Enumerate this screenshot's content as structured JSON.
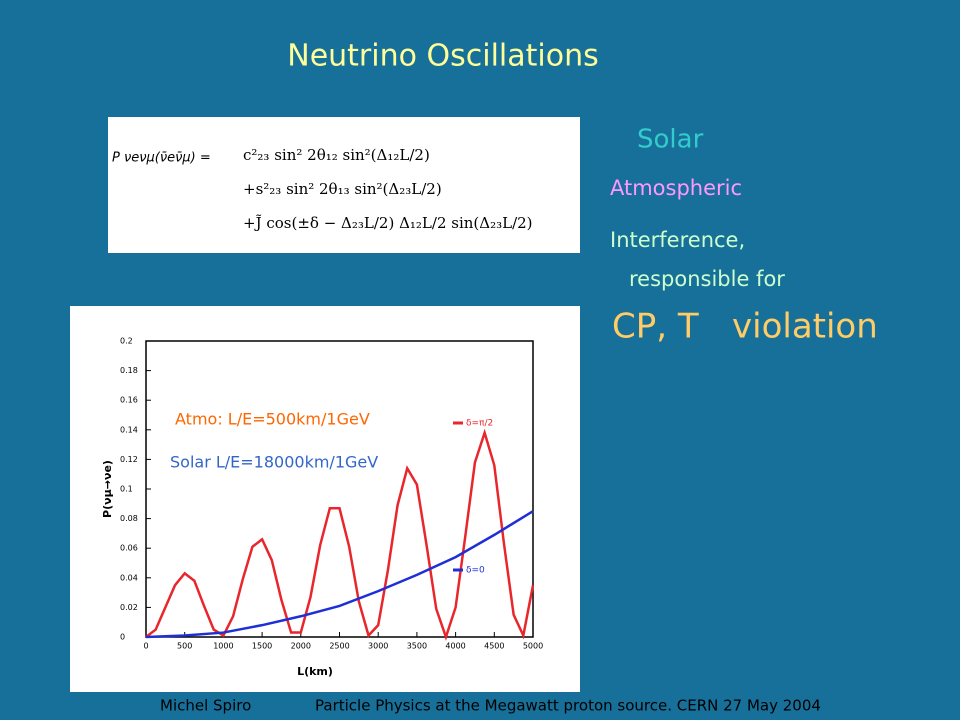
{
  "title": "Neutrino Oscillations",
  "formula": {
    "lhs": "P νeνμ(ν̄eν̄μ) =",
    "line1": "c²₂₃ sin² 2θ₁₂ sin²(Δ₁₂L/2)",
    "line2": "+s²₂₃ sin² 2θ₁₃ sin²(Δ₂₃L/2)",
    "line3": "+J̃ cos(±δ − Δ₂₃L/2) Δ₁₂L/2 sin(Δ₂₃L/2)"
  },
  "terms": {
    "solar": "Solar",
    "atmospheric": "Atmospheric",
    "interference": "Interference,",
    "responsible": "responsible for",
    "cp": "CP, T",
    "violation": "violation"
  },
  "footer": {
    "author": "Michel Spiro",
    "event": "Particle Physics at the Megawatt proton source. CERN 27 May 2004"
  },
  "chart_data": {
    "type": "line",
    "xlabel": "L(km)",
    "ylabel": "P(νμ→νe)",
    "annotations": [
      "Atmo:  L/E=500km/1GeV",
      "Solar L/E=18000km/1GeV"
    ],
    "xlim": [
      0,
      5000
    ],
    "xticks": [
      0,
      500,
      1000,
      1500,
      2000,
      2500,
      3000,
      3500,
      4000,
      4500,
      5000
    ],
    "ylim": [
      0,
      0.2
    ],
    "yticks": [
      0,
      0.02,
      0.04,
      0.06,
      0.08,
      0.1,
      0.12,
      0.14,
      0.16,
      0.18,
      0.2
    ],
    "series": [
      {
        "name": "δ=π/2",
        "color": "#e8262b",
        "x": [
          0,
          125,
          250,
          375,
          500,
          625,
          750,
          875,
          1000,
          1125,
          1250,
          1375,
          1500,
          1625,
          1750,
          1875,
          2000,
          2125,
          2250,
          2375,
          2500,
          2625,
          2750,
          2875,
          3000,
          3125,
          3250,
          3375,
          3500,
          3625,
          3750,
          3875,
          4000,
          4125,
          4250,
          4375,
          4500,
          4625,
          4750,
          4875,
          5000
        ],
        "values": [
          0,
          0.005,
          0.02,
          0.035,
          0.043,
          0.038,
          0.021,
          0.005,
          0.001,
          0.014,
          0.039,
          0.061,
          0.066,
          0.052,
          0.025,
          0.003,
          0.003,
          0.027,
          0.062,
          0.087,
          0.087,
          0.061,
          0.024,
          0.001,
          0.008,
          0.045,
          0.089,
          0.114,
          0.103,
          0.062,
          0.019,
          0,
          0.02,
          0.068,
          0.118,
          0.138,
          0.116,
          0.063,
          0.015,
          0.001,
          0.035
        ]
      },
      {
        "name": "δ=0",
        "color": "#1f2fd6",
        "x": [
          0,
          500,
          1000,
          1500,
          2000,
          2500,
          3000,
          3500,
          4000,
          4500,
          5000
        ],
        "values": [
          0,
          0.001,
          0.003,
          0.008,
          0.014,
          0.021,
          0.031,
          0.042,
          0.054,
          0.069,
          0.085
        ]
      }
    ]
  }
}
